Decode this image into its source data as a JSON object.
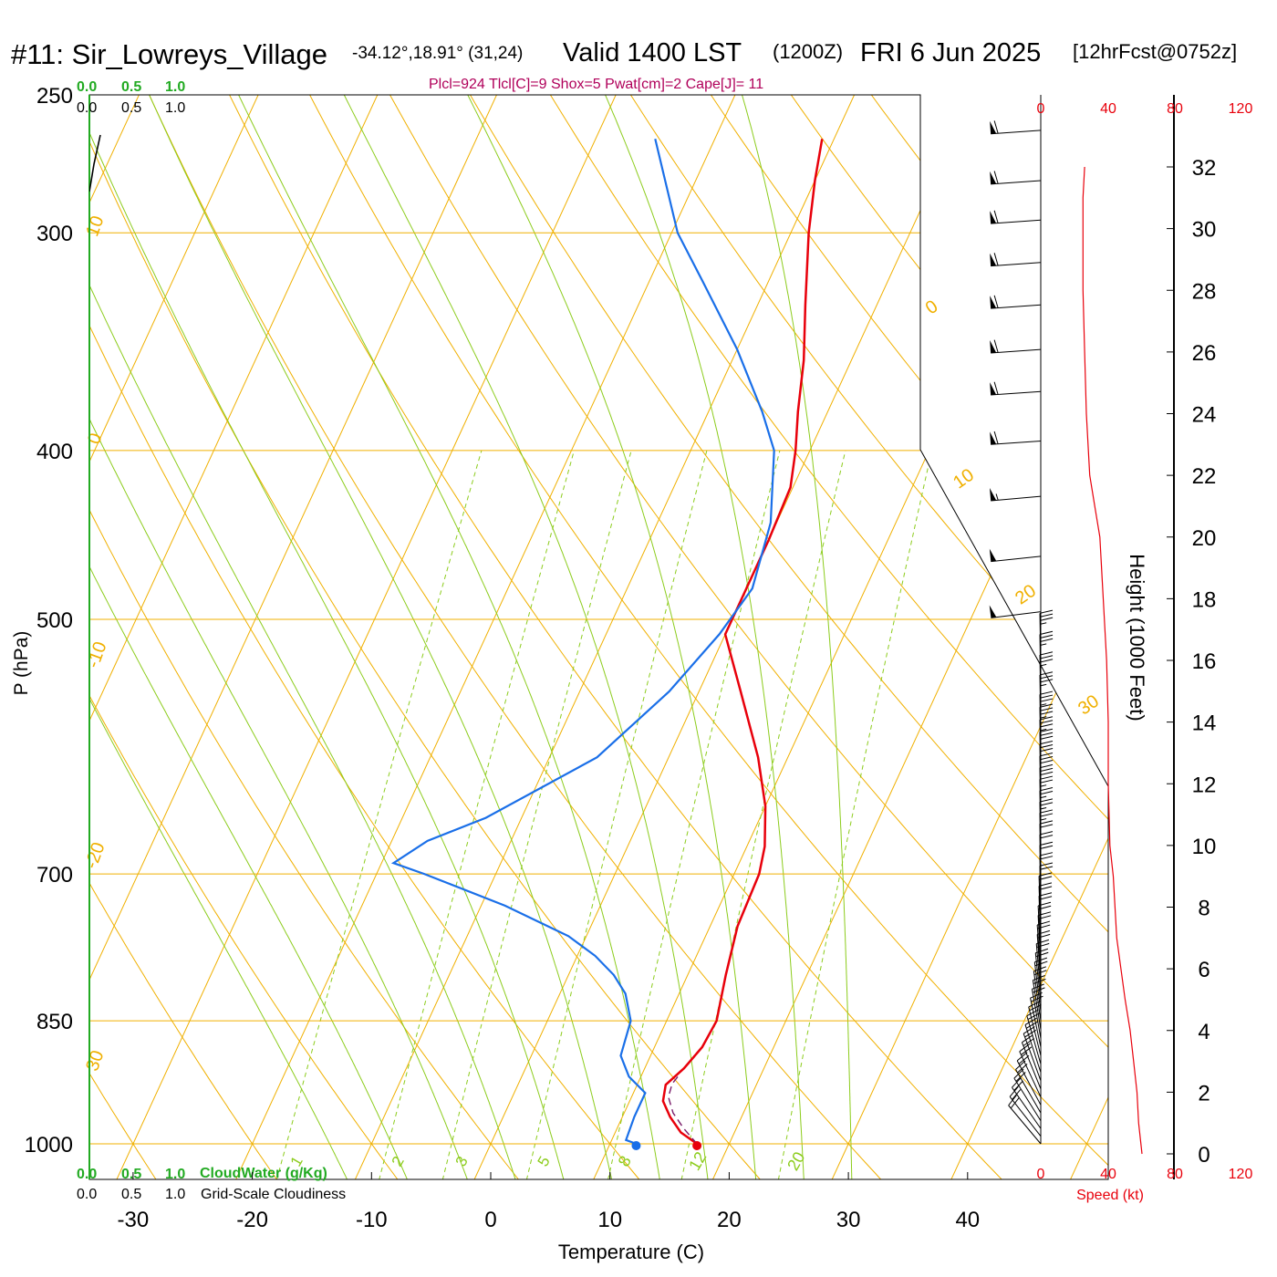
{
  "header": {
    "station": "#11: Sir_Lowreys_Village",
    "coords": "-34.12°,18.91° (31,24)",
    "valid": "Valid 1400 LST",
    "zulu": "(1200Z)",
    "date": "FRI 6 Jun 2025",
    "fcst": "[12hrFcst@0752z]",
    "indices": "Plcl=924 Tlcl[C]=9 Shox=5 Pwat[cm]=2 Cape[J]= 11"
  },
  "colors": {
    "temperature": "#e8000b",
    "dewpoint": "#1a6fe8",
    "isobar_isotherm": "#f0b000",
    "dry_adiabat": "#f0b000",
    "moist_adiabat": "#8ccc1c",
    "mixing_ratio": "#8ccc1c",
    "cloudwater": "#22aa22",
    "indices_text": "#b0005a",
    "wind_speed": "#e8000b"
  },
  "cloud_scales": {
    "top_green": [
      "0.0",
      "0.5",
      "1.0"
    ],
    "top_black": [
      "0.0",
      "0.5",
      "1.0"
    ],
    "bottom_green": [
      "0.0",
      "0.5",
      "1.0"
    ],
    "bottom_green_label": "CloudWater (g/Kg)",
    "bottom_black": [
      "0.0",
      "0.5",
      "1.0"
    ],
    "bottom_black_label": "Grid-Scale Cloudiness"
  },
  "speed_axis": {
    "top_labels": [
      "0",
      "40",
      "80",
      "120"
    ],
    "bottom_labels": [
      "0",
      "40",
      "80",
      "120"
    ],
    "title": "Speed (kt)"
  },
  "chart_data": {
    "type": "skew-t",
    "xlabel": "Temperature (C)",
    "ylabel": "P (hPa)",
    "y2label": "Height (1000 Feet)",
    "x_ticks": [
      -30,
      -20,
      -10,
      0,
      10,
      20,
      30,
      40
    ],
    "p_ticks": [
      250,
      300,
      400,
      500,
      700,
      850,
      1000
    ],
    "height_ticks_kft": [
      0,
      2,
      4,
      6,
      8,
      10,
      12,
      14,
      16,
      18,
      20,
      22,
      24,
      26,
      28,
      30,
      32
    ],
    "p_range": [
      1000,
      250
    ],
    "t_range_at_1000": [
      -34,
      36
    ],
    "dry_adiabat_labels": [
      "10",
      "0",
      "-10",
      "-20",
      "30",
      "0",
      "10",
      "20",
      "30"
    ],
    "moist_adiabat_labels": [
      "8",
      "12",
      "20"
    ],
    "mixing_ratio_labels": [
      "1",
      "2",
      "3",
      "5"
    ],
    "series": [
      {
        "name": "",
        "kind": "temperature",
        "points": [
          [
            1000,
            17.3
          ],
          [
            985,
            15.5
          ],
          [
            965,
            14.0
          ],
          [
            945,
            12.8
          ],
          [
            925,
            12.4
          ],
          [
            905,
            13.3
          ],
          [
            880,
            14.0
          ],
          [
            850,
            14.2
          ],
          [
            800,
            13.2
          ],
          [
            750,
            12.3
          ],
          [
            700,
            12.1
          ],
          [
            675,
            11.5
          ],
          [
            640,
            10.0
          ],
          [
            600,
            7.5
          ],
          [
            550,
            3.5
          ],
          [
            510,
            0.0
          ],
          [
            480,
            0.0
          ],
          [
            450,
            0.0
          ],
          [
            420,
            -0.2
          ],
          [
            400,
            -1.2
          ],
          [
            380,
            -2.5
          ],
          [
            355,
            -4.0
          ],
          [
            330,
            -6.0
          ],
          [
            300,
            -8.5
          ],
          [
            280,
            -10.0
          ],
          [
            265,
            -11.0
          ]
        ]
      },
      {
        "name": "",
        "kind": "dewpoint",
        "points": [
          [
            1000,
            12.2
          ],
          [
            995,
            11.2
          ],
          [
            965,
            11.0
          ],
          [
            935,
            11.0
          ],
          [
            915,
            9.0
          ],
          [
            890,
            7.5
          ],
          [
            850,
            7.0
          ],
          [
            820,
            5.5
          ],
          [
            800,
            3.8
          ],
          [
            780,
            1.5
          ],
          [
            760,
            -1.5
          ],
          [
            730,
            -8.0
          ],
          [
            700,
            -16.0
          ],
          [
            690,
            -19.0
          ],
          [
            670,
            -17.0
          ],
          [
            650,
            -13.0
          ],
          [
            600,
            -6.0
          ],
          [
            550,
            -2.5
          ],
          [
            510,
            -0.5
          ],
          [
            480,
            0.5
          ],
          [
            440,
            -0.5
          ],
          [
            400,
            -3.0
          ],
          [
            380,
            -5.5
          ],
          [
            350,
            -10.0
          ],
          [
            320,
            -15.5
          ],
          [
            300,
            -19.5
          ],
          [
            265,
            -25.0
          ]
        ]
      },
      {
        "name": "",
        "kind": "parcel",
        "points": [
          [
            1000,
            17.3
          ],
          [
            980,
            15.6
          ],
          [
            960,
            14.1
          ],
          [
            940,
            13.1
          ],
          [
            924,
            12.9
          ],
          [
            915,
            13.1
          ]
        ]
      }
    ],
    "wind_profile_kt": [
      [
        0,
        20
      ],
      [
        1,
        18
      ],
      [
        2,
        17
      ],
      [
        3,
        15
      ],
      [
        4,
        13
      ],
      [
        5,
        10
      ],
      [
        7,
        5
      ],
      [
        9,
        3
      ],
      [
        10,
        1
      ],
      [
        12,
        0
      ],
      [
        14,
        0
      ],
      [
        16,
        -1
      ],
      [
        18,
        -3
      ],
      [
        20,
        -5
      ],
      [
        21,
        -8
      ],
      [
        22,
        -11
      ],
      [
        24,
        -13
      ],
      [
        26,
        -14
      ],
      [
        28,
        -15
      ],
      [
        30,
        -15
      ],
      [
        31,
        -15
      ],
      [
        32,
        -14
      ]
    ],
    "wind_barbs": [
      {
        "p": 1000,
        "dir": 320,
        "spd": 20
      },
      {
        "p": 990,
        "dir": 322,
        "spd": 20
      },
      {
        "p": 980,
        "dir": 325,
        "spd": 22
      },
      {
        "p": 970,
        "dir": 328,
        "spd": 22
      },
      {
        "p": 960,
        "dir": 330,
        "spd": 22
      },
      {
        "p": 950,
        "dir": 332,
        "spd": 22
      },
      {
        "p": 940,
        "dir": 335,
        "spd": 22
      },
      {
        "p": 930,
        "dir": 338,
        "spd": 22
      },
      {
        "p": 920,
        "dir": 340,
        "spd": 22
      },
      {
        "p": 910,
        "dir": 342,
        "spd": 20
      },
      {
        "p": 900,
        "dir": 344,
        "spd": 20
      },
      {
        "p": 890,
        "dir": 346,
        "spd": 20
      },
      {
        "p": 880,
        "dir": 348,
        "spd": 20
      },
      {
        "p": 870,
        "dir": 350,
        "spd": 20
      },
      {
        "p": 860,
        "dir": 351,
        "spd": 20
      },
      {
        "p": 850,
        "dir": 352,
        "spd": 20
      },
      {
        "p": 840,
        "dir": 353,
        "spd": 20
      },
      {
        "p": 830,
        "dir": 354,
        "spd": 20
      },
      {
        "p": 820,
        "dir": 355,
        "spd": 20
      },
      {
        "p": 810,
        "dir": 356,
        "spd": 20
      },
      {
        "p": 800,
        "dir": 356,
        "spd": 20
      },
      {
        "p": 790,
        "dir": 357,
        "spd": 20
      },
      {
        "p": 780,
        "dir": 357,
        "spd": 20
      },
      {
        "p": 770,
        "dir": 358,
        "spd": 20
      },
      {
        "p": 760,
        "dir": 358,
        "spd": 20
      },
      {
        "p": 750,
        "dir": 358,
        "spd": 20
      },
      {
        "p": 740,
        "dir": 359,
        "spd": 20
      },
      {
        "p": 730,
        "dir": 359,
        "spd": 20
      },
      {
        "p": 720,
        "dir": 359,
        "spd": 20
      },
      {
        "p": 710,
        "dir": 359,
        "spd": 20
      },
      {
        "p": 700,
        "dir": 359,
        "spd": 20
      },
      {
        "p": 690,
        "dir": 359,
        "spd": 25
      },
      {
        "p": 680,
        "dir": 359,
        "spd": 25
      },
      {
        "p": 670,
        "dir": 359,
        "spd": 25
      },
      {
        "p": 660,
        "dir": 359,
        "spd": 25
      },
      {
        "p": 650,
        "dir": 359,
        "spd": 30
      },
      {
        "p": 640,
        "dir": 359,
        "spd": 30
      },
      {
        "p": 630,
        "dir": 359,
        "spd": 30
      },
      {
        "p": 620,
        "dir": 359,
        "spd": 30
      },
      {
        "p": 610,
        "dir": 359,
        "spd": 35
      },
      {
        "p": 600,
        "dir": 359,
        "spd": 35
      },
      {
        "p": 590,
        "dir": 359,
        "spd": 35
      },
      {
        "p": 575,
        "dir": 359,
        "spd": 35
      },
      {
        "p": 560,
        "dir": 359,
        "spd": 35
      },
      {
        "p": 545,
        "dir": 359,
        "spd": 35
      },
      {
        "p": 530,
        "dir": 359,
        "spd": 35
      },
      {
        "p": 495,
        "dir": 263,
        "spd": 50
      },
      {
        "p": 460,
        "dir": 264,
        "spd": 50
      },
      {
        "p": 425,
        "dir": 265,
        "spd": 55
      },
      {
        "p": 395,
        "dir": 266,
        "spd": 60
      },
      {
        "p": 370,
        "dir": 266,
        "spd": 60
      },
      {
        "p": 350,
        "dir": 266,
        "spd": 60
      },
      {
        "p": 330,
        "dir": 266,
        "spd": 60
      },
      {
        "p": 312,
        "dir": 266,
        "spd": 60
      },
      {
        "p": 295,
        "dir": 266,
        "spd": 60
      },
      {
        "p": 280,
        "dir": 266,
        "spd": 60
      },
      {
        "p": 262,
        "dir": 266,
        "spd": 60
      }
    ]
  }
}
